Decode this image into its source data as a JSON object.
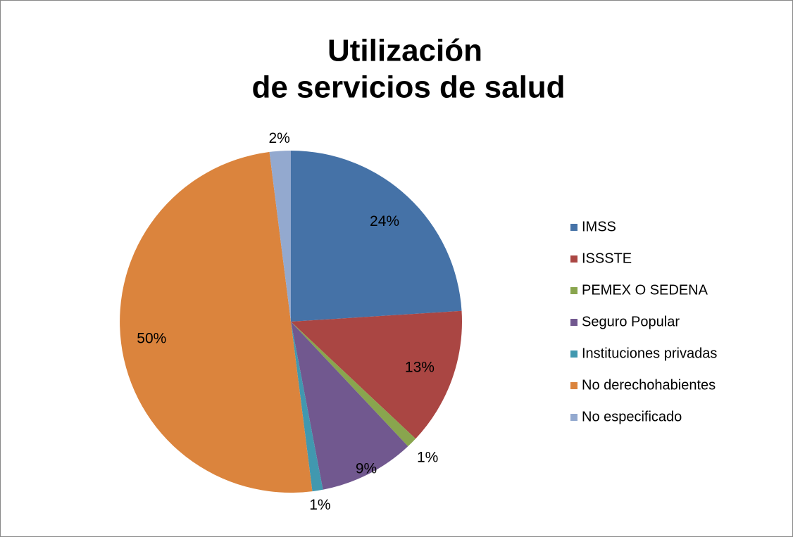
{
  "chart_data": {
    "type": "pie",
    "title": [
      "Utilización",
      "de servicios de salud"
    ],
    "categories": [
      "IMSS",
      "ISSSTE",
      "PEMEX O SEDENA",
      "Seguro Popular",
      "Instituciones privadas",
      "No derechohabientes",
      "No especificado"
    ],
    "values": [
      24,
      13,
      1,
      9,
      1,
      50,
      2
    ],
    "value_labels": [
      "24%",
      "13%",
      "1%",
      "9%",
      "1%",
      "50%",
      "2%"
    ],
    "colors": [
      "#4572a7",
      "#aa4643",
      "#89a54e",
      "#71588f",
      "#4198af",
      "#db843d",
      "#93a9cf"
    ],
    "legend": "right"
  }
}
